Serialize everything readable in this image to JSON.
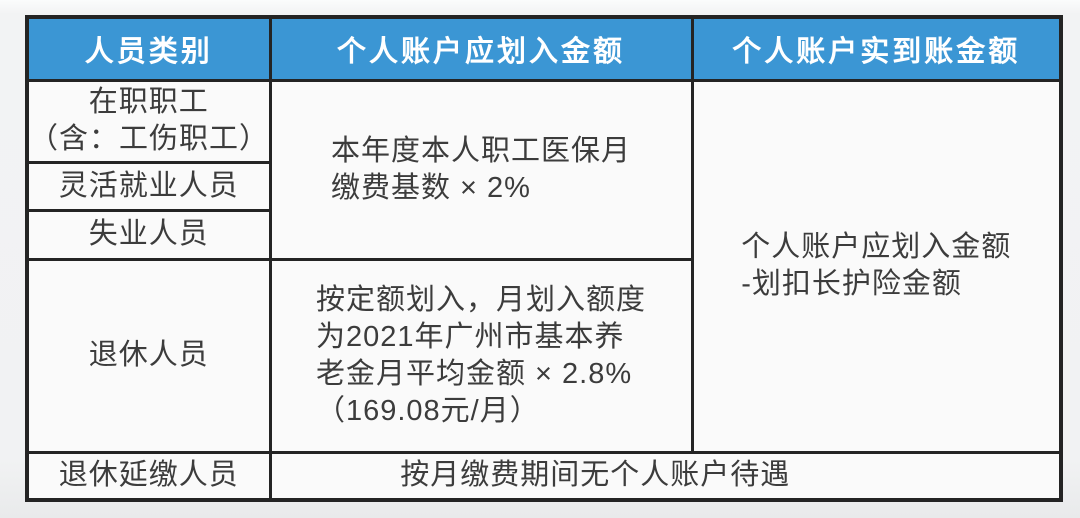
{
  "page": {
    "background_color": "#f1f2f3"
  },
  "table": {
    "accent_color": "#3b96d4",
    "border_color": "#242424",
    "header_text_color": "#ffffff",
    "body_text_color": "#3c3c3c",
    "headers": [
      {
        "label": "人员类别"
      },
      {
        "label": "个人账户应划入金额"
      },
      {
        "label": "个人账户实到账金额"
      }
    ],
    "categories": {
      "employed": "在职职工\n（含：工伤职工）",
      "flexible": "灵活就业人员",
      "unemployed": "失业人员",
      "retired": "退休人员",
      "retired_deferred": "退休延缴人员"
    },
    "cells": {
      "active_credit": "本年度本人职工医保月\n缴费基数 × 2%",
      "retired_credit": "按定额划入，月划入额度\n为2021年广州市基本养\n老金月平均金额 × 2.8%\n（169.08元/月）",
      "actual_credit": "个人账户应划入金额\n-划扣长护险金额",
      "deferred_note": "按月缴费期间无个人账户待遇"
    }
  }
}
